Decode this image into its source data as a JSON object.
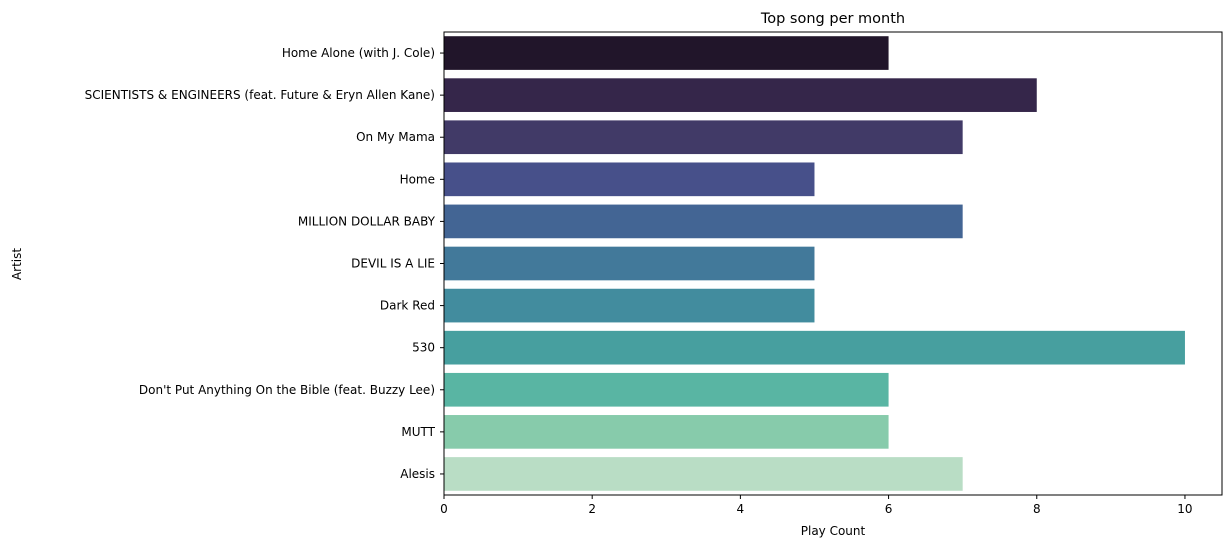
{
  "chart_data": {
    "type": "bar",
    "orientation": "horizontal",
    "title": "Top song per month",
    "xlabel": "Play Count",
    "ylabel": "Artist",
    "xlim": [
      0,
      10.5
    ],
    "xticks": [
      0,
      2,
      4,
      6,
      8,
      10
    ],
    "grid": false,
    "categories": [
      "Home Alone (with J. Cole)",
      "SCIENTISTS & ENGINEERS (feat. Future & Eryn Allen Kane)",
      "On My Mama",
      "Home",
      "MILLION DOLLAR BABY",
      "DEVIL IS A LIE",
      "Dark Red",
      "530",
      "Don't Put Anything On the Bible (feat. Buzzy Lee)",
      "MUTT",
      "Alesis"
    ],
    "values": [
      6,
      8,
      7,
      5,
      7,
      5,
      5,
      10,
      6,
      6,
      7
    ],
    "colors": [
      "#21152a",
      "#35264a",
      "#413a67",
      "#47508a",
      "#436594",
      "#42799a",
      "#428c9e",
      "#479f9f",
      "#59b5a3",
      "#87cbab",
      "#b9ddc5"
    ]
  }
}
